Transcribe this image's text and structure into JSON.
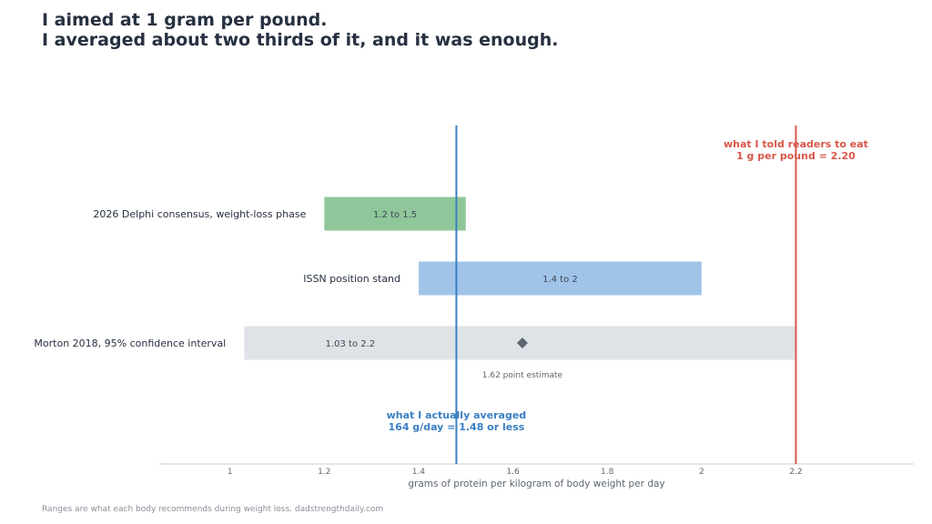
{
  "title": {
    "line1": "I aimed at 1 gram per pound.",
    "line2": "I averaged about two thirds of it, and it was enough."
  },
  "footnote": "Ranges are what each body recommends during weight loss. dadstrengthdaily.com",
  "chart_data": {
    "type": "range",
    "xlabel": "grams of protein per kilogram of body weight per day",
    "xlim": [
      0.85,
      2.45
    ],
    "xticks": [
      1,
      1.2,
      1.4,
      1.6,
      1.8,
      2,
      2.2
    ],
    "xtick_labels": [
      "1",
      "1.2",
      "1.4",
      "1.6",
      "1.8",
      "2",
      "2.2"
    ],
    "grid": false,
    "ranges": [
      {
        "label": "2026 Delphi consensus, weight-loss phase",
        "low": 1.2,
        "high": 1.5,
        "range_label": "1.2 to 1.5",
        "color": "#90c79a"
      },
      {
        "label": "ISSN position stand",
        "low": 1.4,
        "high": 2.0,
        "range_label": "1.4 to 2",
        "color": "#a0c4e8"
      },
      {
        "label": "Morton 2018, 95% confidence interval",
        "low": 1.03,
        "high": 2.2,
        "range_label": "1.03 to 2.2",
        "color": "#dfe3e7",
        "point": 1.62,
        "point_label": "1.62 point estimate"
      }
    ],
    "reference_lines": [
      {
        "x": 1.48,
        "color": "#3a80c4",
        "line1": "what I actually averaged",
        "line2": "164 g/day = 1.48 or less"
      },
      {
        "x": 2.2,
        "color": "#d9574a",
        "line1": "what I told readers to eat",
        "line2": "1 g per pound = 2.20"
      }
    ]
  }
}
